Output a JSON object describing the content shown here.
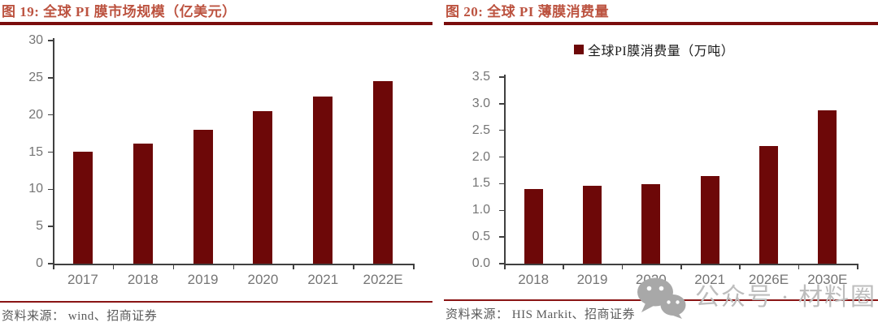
{
  "colors": {
    "bar": "#6D0808",
    "title_text": "#BC5340",
    "title_underline": "#7A0C0C",
    "source_line": "#8A1414"
  },
  "chart_data": [
    {
      "type": "bar",
      "title": "图 19:  全球 PI 膜市场规模（亿美元）",
      "categories": [
        "2017",
        "2018",
        "2019",
        "2020",
        "2021",
        "2022E"
      ],
      "values": [
        15.1,
        16.2,
        18.0,
        20.5,
        22.5,
        24.5
      ],
      "ylim": [
        0,
        30
      ],
      "ytick_step": 5,
      "ytick_labels": [
        "0",
        "5",
        "10",
        "15",
        "20",
        "25",
        "30"
      ],
      "grid": false,
      "legend": null,
      "legend_position": null,
      "source": "资料来源： wind、招商证券"
    },
    {
      "type": "bar",
      "title": "图 20:  全球 PI 薄膜消费量",
      "categories": [
        "2018",
        "2019",
        "2020",
        "2021",
        "2026E",
        "2030E"
      ],
      "values": [
        1.4,
        1.46,
        1.49,
        1.64,
        2.2,
        2.88
      ],
      "ylim": [
        0,
        3.5
      ],
      "ytick_step": 0.5,
      "ytick_labels": [
        "0.0",
        "0.5",
        "1.0",
        "1.5",
        "2.0",
        "2.5",
        "3.0",
        "3.5"
      ],
      "grid": false,
      "legend": "全球PI膜消费量（万吨）",
      "legend_position": "top",
      "source": "资料来源： HIS Markit、招商证券"
    }
  ],
  "watermark": {
    "icon": "wechat-icon",
    "text": "公众号 · 材料圈"
  }
}
